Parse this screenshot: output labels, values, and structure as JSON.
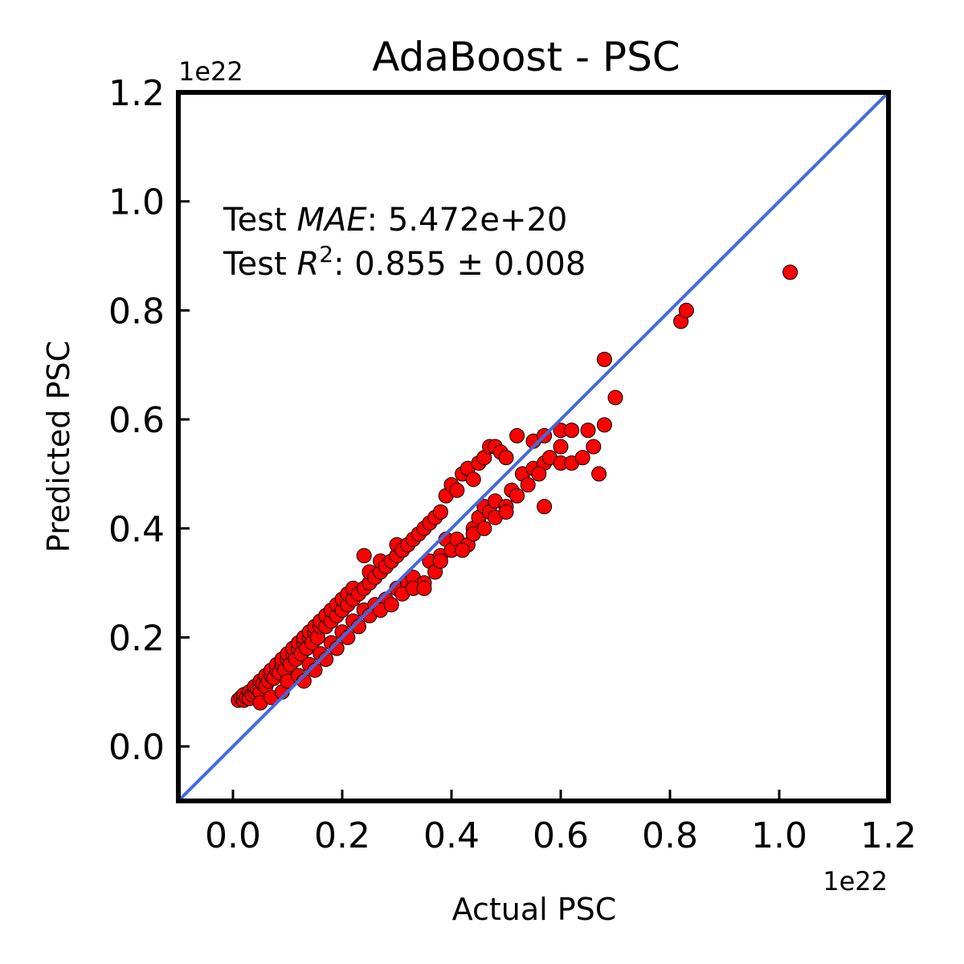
{
  "chart_data": {
    "type": "scatter",
    "title": "AdaBoost - PSC",
    "xlabel": "Actual PSC",
    "ylabel": "Predicted PSC",
    "x_offset_label": "1e22",
    "y_offset_label": "1e22",
    "xlim": [
      -0.1,
      1.2
    ],
    "ylim": [
      -0.1,
      1.2
    ],
    "xticks": [
      0.0,
      0.2,
      0.4,
      0.6,
      0.8,
      1.0,
      1.2
    ],
    "yticks": [
      0.0,
      0.2,
      0.4,
      0.6,
      0.8,
      1.0,
      1.2
    ],
    "xtick_labels": [
      "0.0",
      "0.2",
      "0.4",
      "0.6",
      "0.8",
      "1.0",
      "1.2"
    ],
    "ytick_labels": [
      "0.0",
      "0.2",
      "0.4",
      "0.6",
      "0.8",
      "1.0",
      "1.2"
    ],
    "grid": false,
    "annotation": {
      "mae_prefix": "Test ",
      "mae_symbol": "MAE",
      "mae_value": ": 5.472e+20",
      "r2_prefix": "Test ",
      "r2_symbol": "R",
      "r2_exp": "2",
      "r2_value": ": 0.855 ± 0.008"
    },
    "identity_line_color": "#4169e1",
    "marker_color": "#ff0000",
    "marker_edge_color": "#000000",
    "series": [
      {
        "values": [
          [
            0.01,
            0.085
          ],
          [
            0.015,
            0.09
          ],
          [
            0.02,
            0.085
          ],
          [
            0.02,
            0.095
          ],
          [
            0.025,
            0.09
          ],
          [
            0.03,
            0.1
          ],
          [
            0.03,
            0.088
          ],
          [
            0.035,
            0.095
          ],
          [
            0.04,
            0.1
          ],
          [
            0.04,
            0.11
          ],
          [
            0.045,
            0.105
          ],
          [
            0.05,
            0.1
          ],
          [
            0.05,
            0.12
          ],
          [
            0.055,
            0.115
          ],
          [
            0.06,
            0.11
          ],
          [
            0.06,
            0.13
          ],
          [
            0.065,
            0.12
          ],
          [
            0.07,
            0.13
          ],
          [
            0.07,
            0.14
          ],
          [
            0.075,
            0.125
          ],
          [
            0.08,
            0.14
          ],
          [
            0.08,
            0.15
          ],
          [
            0.085,
            0.135
          ],
          [
            0.09,
            0.15
          ],
          [
            0.09,
            0.16
          ],
          [
            0.095,
            0.14
          ],
          [
            0.1,
            0.16
          ],
          [
            0.1,
            0.17
          ],
          [
            0.105,
            0.15
          ],
          [
            0.11,
            0.17
          ],
          [
            0.11,
            0.18
          ],
          [
            0.115,
            0.16
          ],
          [
            0.12,
            0.18
          ],
          [
            0.12,
            0.19
          ],
          [
            0.125,
            0.17
          ],
          [
            0.13,
            0.19
          ],
          [
            0.13,
            0.2
          ],
          [
            0.135,
            0.18
          ],
          [
            0.14,
            0.2
          ],
          [
            0.14,
            0.21
          ],
          [
            0.145,
            0.19
          ],
          [
            0.15,
            0.21
          ],
          [
            0.15,
            0.22
          ],
          [
            0.155,
            0.2
          ],
          [
            0.16,
            0.22
          ],
          [
            0.16,
            0.23
          ],
          [
            0.17,
            0.22
          ],
          [
            0.17,
            0.24
          ],
          [
            0.18,
            0.23
          ],
          [
            0.18,
            0.25
          ],
          [
            0.19,
            0.24
          ],
          [
            0.19,
            0.26
          ],
          [
            0.2,
            0.25
          ],
          [
            0.2,
            0.27
          ],
          [
            0.21,
            0.26
          ],
          [
            0.21,
            0.28
          ],
          [
            0.22,
            0.27
          ],
          [
            0.22,
            0.29
          ],
          [
            0.23,
            0.28
          ],
          [
            0.24,
            0.29
          ],
          [
            0.24,
            0.35
          ],
          [
            0.25,
            0.3
          ],
          [
            0.25,
            0.32
          ],
          [
            0.26,
            0.31
          ],
          [
            0.27,
            0.32
          ],
          [
            0.27,
            0.34
          ],
          [
            0.28,
            0.33
          ],
          [
            0.29,
            0.34
          ],
          [
            0.3,
            0.35
          ],
          [
            0.3,
            0.37
          ],
          [
            0.31,
            0.36
          ],
          [
            0.32,
            0.37
          ],
          [
            0.33,
            0.38
          ],
          [
            0.34,
            0.39
          ],
          [
            0.35,
            0.4
          ],
          [
            0.36,
            0.41
          ],
          [
            0.37,
            0.42
          ],
          [
            0.38,
            0.43
          ],
          [
            0.39,
            0.46
          ],
          [
            0.4,
            0.48
          ],
          [
            0.41,
            0.47
          ],
          [
            0.42,
            0.5
          ],
          [
            0.43,
            0.51
          ],
          [
            0.44,
            0.49
          ],
          [
            0.45,
            0.52
          ],
          [
            0.46,
            0.53
          ],
          [
            0.47,
            0.55
          ],
          [
            0.48,
            0.55
          ],
          [
            0.49,
            0.54
          ],
          [
            0.5,
            0.53
          ],
          [
            0.52,
            0.57
          ],
          [
            0.55,
            0.56
          ],
          [
            0.57,
            0.57
          ],
          [
            0.6,
            0.58
          ],
          [
            0.62,
            0.58
          ],
          [
            0.65,
            0.58
          ],
          [
            0.66,
            0.55
          ],
          [
            0.68,
            0.59
          ],
          [
            0.05,
            0.08
          ],
          [
            0.07,
            0.09
          ],
          [
            0.09,
            0.1
          ],
          [
            0.1,
            0.12
          ],
          [
            0.12,
            0.13
          ],
          [
            0.14,
            0.15
          ],
          [
            0.16,
            0.17
          ],
          [
            0.18,
            0.19
          ],
          [
            0.2,
            0.21
          ],
          [
            0.22,
            0.23
          ],
          [
            0.24,
            0.25
          ],
          [
            0.26,
            0.26
          ],
          [
            0.28,
            0.27
          ],
          [
            0.3,
            0.29
          ],
          [
            0.32,
            0.3
          ],
          [
            0.33,
            0.31
          ],
          [
            0.35,
            0.3
          ],
          [
            0.36,
            0.34
          ],
          [
            0.38,
            0.35
          ],
          [
            0.39,
            0.38
          ],
          [
            0.4,
            0.36
          ],
          [
            0.41,
            0.38
          ],
          [
            0.43,
            0.37
          ],
          [
            0.44,
            0.4
          ],
          [
            0.45,
            0.42
          ],
          [
            0.46,
            0.44
          ],
          [
            0.47,
            0.43
          ],
          [
            0.48,
            0.45
          ],
          [
            0.5,
            0.44
          ],
          [
            0.51,
            0.47
          ],
          [
            0.53,
            0.5
          ],
          [
            0.55,
            0.51
          ],
          [
            0.57,
            0.52
          ],
          [
            0.58,
            0.53
          ],
          [
            0.6,
            0.52
          ],
          [
            0.6,
            0.55
          ],
          [
            0.13,
            0.12
          ],
          [
            0.15,
            0.14
          ],
          [
            0.17,
            0.16
          ],
          [
            0.19,
            0.18
          ],
          [
            0.21,
            0.2
          ],
          [
            0.23,
            0.22
          ],
          [
            0.25,
            0.24
          ],
          [
            0.27,
            0.25
          ],
          [
            0.29,
            0.26
          ],
          [
            0.31,
            0.28
          ],
          [
            0.33,
            0.29
          ],
          [
            0.35,
            0.29
          ],
          [
            0.37,
            0.32
          ],
          [
            0.38,
            0.34
          ],
          [
            0.42,
            0.36
          ],
          [
            0.44,
            0.39
          ],
          [
            0.46,
            0.4
          ],
          [
            0.48,
            0.42
          ],
          [
            0.5,
            0.43
          ],
          [
            0.52,
            0.46
          ],
          [
            0.54,
            0.48
          ],
          [
            0.56,
            0.5
          ],
          [
            0.57,
            0.44
          ],
          [
            0.62,
            0.52
          ],
          [
            0.64,
            0.53
          ],
          [
            0.67,
            0.5
          ],
          [
            0.7,
            0.64
          ],
          [
            0.68,
            0.71
          ],
          [
            0.82,
            0.78
          ],
          [
            0.83,
            0.8
          ],
          [
            1.02,
            0.87
          ]
        ]
      }
    ]
  }
}
